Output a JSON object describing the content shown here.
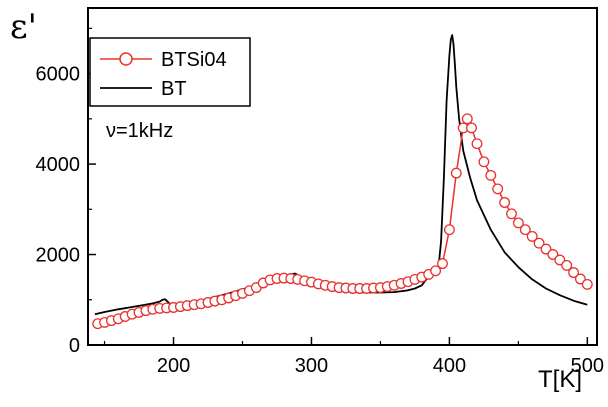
{
  "chart_data": {
    "type": "line",
    "xlabel": "T[K]",
    "ylabel": "ε'",
    "xlim": [
      138,
      507
    ],
    "ylim": [
      0,
      7450
    ],
    "x_ticks": [
      200,
      300,
      400,
      500
    ],
    "y_ticks": [
      0,
      2000,
      4000,
      6000
    ],
    "annotation": "ν=1kHz",
    "legend_position": "top-left",
    "series": [
      {
        "name": "BTSi04",
        "color": "#e8322e",
        "style": "line-with-open-circles",
        "x": [
          145,
          150,
          155,
          160,
          165,
          170,
          175,
          180,
          185,
          190,
          195,
          200,
          205,
          210,
          215,
          220,
          225,
          230,
          235,
          240,
          245,
          250,
          255,
          260,
          265,
          270,
          275,
          280,
          285,
          290,
          295,
          300,
          305,
          310,
          315,
          320,
          325,
          330,
          335,
          340,
          345,
          350,
          355,
          360,
          365,
          370,
          375,
          380,
          385,
          390,
          395,
          400,
          405,
          410,
          413,
          416,
          420,
          425,
          430,
          435,
          440,
          445,
          450,
          455,
          460,
          465,
          470,
          475,
          480,
          485,
          490,
          495,
          500
        ],
        "values": [
          470,
          500,
          540,
          580,
          630,
          680,
          720,
          760,
          790,
          810,
          820,
          830,
          850,
          870,
          890,
          910,
          940,
          970,
          1000,
          1040,
          1090,
          1140,
          1200,
          1270,
          1370,
          1440,
          1470,
          1480,
          1470,
          1450,
          1420,
          1390,
          1350,
          1320,
          1290,
          1270,
          1260,
          1250,
          1250,
          1250,
          1260,
          1270,
          1290,
          1320,
          1360,
          1400,
          1450,
          1500,
          1560,
          1640,
          1800,
          2550,
          3800,
          4800,
          5000,
          4800,
          4450,
          4050,
          3750,
          3450,
          3150,
          2900,
          2700,
          2550,
          2400,
          2250,
          2120,
          2000,
          1880,
          1760,
          1600,
          1460,
          1340
        ]
      },
      {
        "name": "BT",
        "color": "#000000",
        "style": "line",
        "x": [
          143,
          150,
          160,
          170,
          180,
          185,
          190,
          192,
          194,
          196,
          198,
          200,
          205,
          210,
          220,
          230,
          240,
          250,
          260,
          270,
          275,
          280,
          285,
          288,
          290,
          292,
          295,
          300,
          310,
          320,
          330,
          340,
          350,
          360,
          370,
          375,
          380,
          384,
          386,
          388,
          390,
          392,
          394,
          396,
          398,
          400,
          401,
          402,
          403,
          404,
          405,
          407,
          410,
          415,
          420,
          430,
          440,
          450,
          460,
          470,
          480,
          490,
          500
        ],
        "values": [
          680,
          730,
          790,
          840,
          890,
          920,
          960,
          1000,
          1010,
          950,
          880,
          850,
          870,
          900,
          980,
          1060,
          1140,
          1230,
          1320,
          1410,
          1460,
          1510,
          1560,
          1580,
          1550,
          1500,
          1420,
          1330,
          1250,
          1200,
          1170,
          1160,
          1160,
          1170,
          1210,
          1250,
          1320,
          1480,
          1650,
          1600,
          1580,
          1700,
          2300,
          3700,
          5400,
          6400,
          6750,
          6850,
          6650,
          6200,
          5700,
          5000,
          4300,
          3700,
          3200,
          2550,
          2050,
          1720,
          1450,
          1250,
          1100,
          980,
          890
        ]
      }
    ]
  }
}
